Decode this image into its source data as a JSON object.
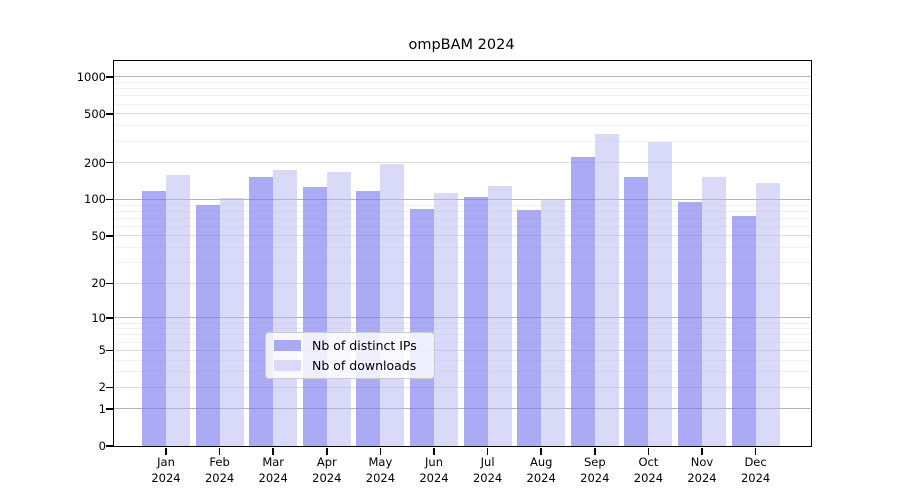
{
  "chart_data": {
    "type": "bar",
    "title": "ompBAM 2024",
    "categories": [
      "Jan",
      "Feb",
      "Mar",
      "Apr",
      "May",
      "Jun",
      "Jul",
      "Aug",
      "Sep",
      "Oct",
      "Nov",
      "Dec"
    ],
    "category_year": "2024",
    "series": [
      {
        "name": "Nb of distinct IPs",
        "color": "rgba(124,124,240,0.65)",
        "legend_color": "#aaaaf4",
        "values": [
          118,
          90,
          153,
          127,
          117,
          83,
          104,
          82,
          224,
          153,
          95,
          73
        ]
      },
      {
        "name": "Nb of downloads",
        "color": "rgba(180,180,242,0.5)",
        "legend_color": "#dadaf8",
        "values": [
          158,
          102,
          175,
          168,
          195,
          112,
          129,
          100,
          340,
          298,
          152,
          137
        ]
      }
    ],
    "yscale": "log10(1+v)",
    "yticks": [
      0,
      1,
      2,
      5,
      10,
      20,
      50,
      100,
      200,
      500,
      1000
    ],
    "ylim": [
      0,
      1350
    ],
    "grid": "horizontal major+minor",
    "grid_major_values": [
      1,
      10,
      100,
      1000
    ],
    "grid_mid_values": [
      2,
      5,
      20,
      50,
      200,
      500
    ],
    "grid_minor_values": [
      3,
      4,
      6,
      7,
      8,
      9,
      30,
      40,
      60,
      70,
      80,
      90,
      300,
      400,
      600,
      700,
      800,
      900
    ],
    "grid_colors": {
      "major": "#b3b3b3",
      "mid": "#dddddd",
      "minor": "#f0f0f0"
    },
    "legend_position": "lower center"
  }
}
